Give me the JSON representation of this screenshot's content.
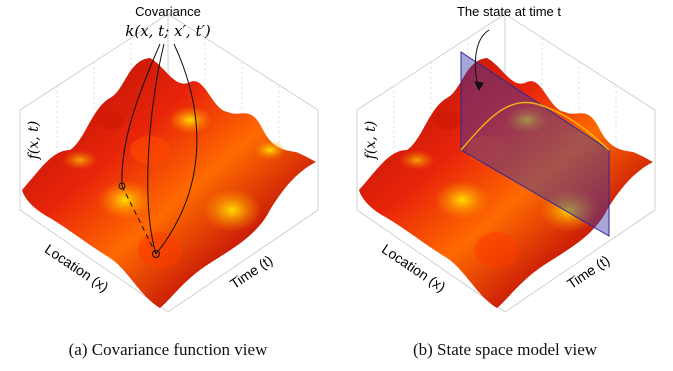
{
  "panel_a": {
    "annotation_line1": "Covariance",
    "annotation_line2": "k(x, t; x′, t′)",
    "z_axis_label": "f(x, t)",
    "x_axis_label": "Location (x)",
    "y_axis_label": "Time (t)",
    "caption": "(a) Covariance function view"
  },
  "panel_b": {
    "annotation": "The state at time t",
    "z_axis_label": "f(x, t)",
    "x_axis_label": "Location (x)",
    "y_axis_label": "Time (t)",
    "caption": "(b) State space model view"
  },
  "colors": {
    "surface_low": "#8b0000",
    "surface_mid": "#ff2a00",
    "surface_high": "#ffe600",
    "slice_plane": "#3a3aa8"
  }
}
